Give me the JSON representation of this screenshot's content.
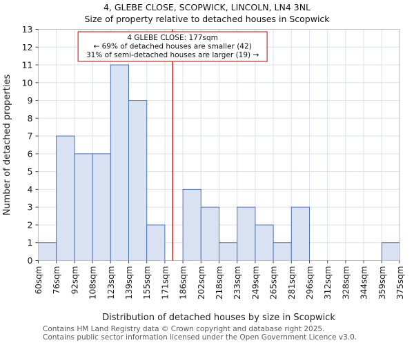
{
  "title": "4, GLEBE CLOSE, SCOPWICK, LINCOLN, LN4 3NL",
  "subtitle": "Size of property relative to detached houses in Scopwick",
  "chart_data": {
    "type": "bar",
    "categories": [
      "60sqm",
      "76sqm",
      "92sqm",
      "108sqm",
      "123sqm",
      "139sqm",
      "155sqm",
      "171sqm",
      "186sqm",
      "202sqm",
      "218sqm",
      "233sqm",
      "249sqm",
      "265sqm",
      "281sqm",
      "296sqm",
      "312sqm",
      "328sqm",
      "344sqm",
      "359sqm",
      "375sqm"
    ],
    "values": [
      1,
      7,
      6,
      6,
      11,
      9,
      2,
      0,
      4,
      3,
      1,
      3,
      2,
      1,
      3,
      0,
      0,
      0,
      0,
      1
    ],
    "xlabel": "Distribution of detached houses by size in Scopwick",
    "ylabel": "Number of detached properties",
    "ylim": [
      0,
      13
    ],
    "x_range_sqm": [
      60,
      375
    ],
    "grid": true,
    "legend": "none",
    "bar_fill": "#d9e2f3",
    "bar_stroke": "#4a74b9",
    "marker": {
      "sqm": 177,
      "color": "#cc0000"
    },
    "annotation": {
      "line1": "4 GLEBE CLOSE: 177sqm",
      "line2": "← 69% of detached houses are smaller (42)",
      "line3": "31% of semi-detached houses are larger (19) →"
    }
  },
  "footer": {
    "line1": "Contains HM Land Registry data © Crown copyright and database right 2025.",
    "line2": "Contains public sector information licensed under the Open Government Licence v3.0."
  }
}
